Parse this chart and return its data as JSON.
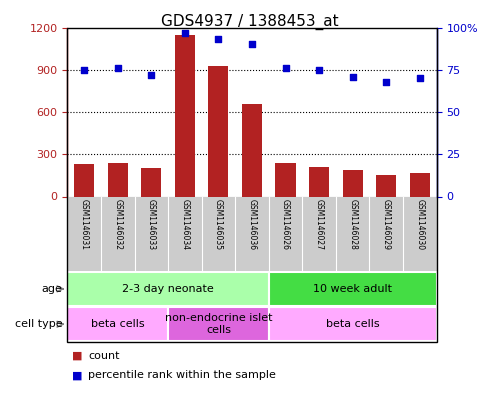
{
  "title": "GDS4937 / 1388453_at",
  "samples": [
    "GSM1146031",
    "GSM1146032",
    "GSM1146033",
    "GSM1146034",
    "GSM1146035",
    "GSM1146036",
    "GSM1146026",
    "GSM1146027",
    "GSM1146028",
    "GSM1146029",
    "GSM1146030"
  ],
  "counts": [
    230,
    240,
    200,
    1150,
    930,
    660,
    240,
    210,
    190,
    150,
    170
  ],
  "percentiles": [
    75,
    76,
    72,
    97,
    93,
    90,
    76,
    75,
    71,
    68,
    70
  ],
  "ylim_left": [
    0,
    1200
  ],
  "ylim_right": [
    0,
    100
  ],
  "yticks_left": [
    0,
    300,
    600,
    900,
    1200
  ],
  "yticks_right": [
    0,
    25,
    50,
    75,
    100
  ],
  "ytick_labels_right": [
    "0",
    "25",
    "50",
    "75",
    "100%"
  ],
  "bar_color": "#B22222",
  "dot_color": "#0000CC",
  "age_groups": [
    {
      "label": "2-3 day neonate",
      "start": 0,
      "end": 6,
      "color": "#AAFFAA"
    },
    {
      "label": "10 week adult",
      "start": 6,
      "end": 11,
      "color": "#44DD44"
    }
  ],
  "cell_type_groups": [
    {
      "label": "beta cells",
      "start": 0,
      "end": 3,
      "color": "#FFAAFF"
    },
    {
      "label": "non-endocrine islet\ncells",
      "start": 3,
      "end": 6,
      "color": "#DD66DD"
    },
    {
      "label": "beta cells",
      "start": 6,
      "end": 11,
      "color": "#FFAAFF"
    }
  ],
  "legend_count_label": "count",
  "legend_pct_label": "percentile rank within the sample",
  "age_label": "age",
  "cell_type_label": "cell type",
  "sample_bg_color": "#CCCCCC",
  "title_fontsize": 11,
  "tick_fontsize": 8,
  "sample_fontsize": 5.5,
  "annotation_fontsize": 8,
  "group_fontsize": 8,
  "legend_fontsize": 8
}
